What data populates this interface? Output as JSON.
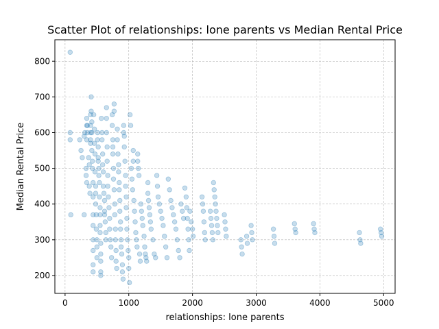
{
  "chart_data": {
    "type": "scatter",
    "title": "Scatter Plot of relationships: lone parents vs Median Rental Price",
    "xlabel": "relationships: lone parents",
    "ylabel": "Median Rental Price",
    "xlim": [
      -160,
      5180
    ],
    "ylim": [
      150,
      860
    ],
    "x_ticks": [
      0,
      1000,
      2000,
      3000,
      4000,
      5000
    ],
    "y_ticks": [
      200,
      300,
      400,
      500,
      600,
      700,
      800
    ],
    "grid": true,
    "marker_color": "#1f77b4",
    "marker_alpha": 0.25,
    "points": [
      [
        80,
        825
      ],
      [
        80,
        600
      ],
      [
        80,
        580
      ],
      [
        90,
        370
      ],
      [
        230,
        580
      ],
      [
        250,
        550
      ],
      [
        270,
        530
      ],
      [
        300,
        590
      ],
      [
        310,
        600
      ],
      [
        300,
        370
      ],
      [
        340,
        640
      ],
      [
        340,
        620
      ],
      [
        340,
        580
      ],
      [
        330,
        500
      ],
      [
        330,
        480
      ],
      [
        340,
        460
      ],
      [
        350,
        620
      ],
      [
        350,
        600
      ],
      [
        370,
        530
      ],
      [
        380,
        510
      ],
      [
        380,
        450
      ],
      [
        390,
        430
      ],
      [
        400,
        650
      ],
      [
        400,
        620
      ],
      [
        400,
        600
      ],
      [
        400,
        580
      ],
      [
        400,
        570
      ],
      [
        410,
        700
      ],
      [
        410,
        660
      ],
      [
        420,
        630
      ],
      [
        420,
        600
      ],
      [
        420,
        550
      ],
      [
        430,
        520
      ],
      [
        430,
        500
      ],
      [
        440,
        460
      ],
      [
        440,
        420
      ],
      [
        440,
        370
      ],
      [
        440,
        340
      ],
      [
        440,
        300
      ],
      [
        440,
        270
      ],
      [
        440,
        230
      ],
      [
        440,
        210
      ],
      [
        450,
        650
      ],
      [
        460,
        610
      ],
      [
        460,
        570
      ],
      [
        470,
        540
      ],
      [
        470,
        490
      ],
      [
        480,
        450
      ],
      [
        480,
        430
      ],
      [
        480,
        400
      ],
      [
        490,
        370
      ],
      [
        490,
        330
      ],
      [
        500,
        300
      ],
      [
        500,
        280
      ],
      [
        500,
        250
      ],
      [
        510,
        600
      ],
      [
        510,
        580
      ],
      [
        520,
        560
      ],
      [
        520,
        530
      ],
      [
        520,
        520
      ],
      [
        530,
        500
      ],
      [
        530,
        480
      ],
      [
        540,
        460
      ],
      [
        540,
        420
      ],
      [
        550,
        390
      ],
      [
        550,
        370
      ],
      [
        550,
        340
      ],
      [
        550,
        320
      ],
      [
        560,
        290
      ],
      [
        560,
        260
      ],
      [
        560,
        240
      ],
      [
        560,
        210
      ],
      [
        560,
        200
      ],
      [
        570,
        640
      ],
      [
        580,
        600
      ],
      [
        580,
        580
      ],
      [
        590,
        540
      ],
      [
        590,
        510
      ],
      [
        600,
        490
      ],
      [
        600,
        450
      ],
      [
        610,
        430
      ],
      [
        620,
        410
      ],
      [
        620,
        380
      ],
      [
        620,
        370
      ],
      [
        630,
        350
      ],
      [
        640,
        320
      ],
      [
        640,
        300
      ],
      [
        650,
        670
      ],
      [
        650,
        640
      ],
      [
        650,
        600
      ],
      [
        660,
        560
      ],
      [
        660,
        520
      ],
      [
        670,
        480
      ],
      [
        670,
        450
      ],
      [
        680,
        420
      ],
      [
        690,
        390
      ],
      [
        700,
        360
      ],
      [
        700,
        330
      ],
      [
        710,
        300
      ],
      [
        720,
        280
      ],
      [
        730,
        250
      ],
      [
        740,
        650
      ],
      [
        740,
        620
      ],
      [
        750,
        580
      ],
      [
        750,
        560
      ],
      [
        750,
        540
      ],
      [
        760,
        500
      ],
      [
        760,
        470
      ],
      [
        770,
        680
      ],
      [
        770,
        660
      ],
      [
        770,
        440
      ],
      [
        780,
        400
      ],
      [
        780,
        370
      ],
      [
        790,
        330
      ],
      [
        790,
        300
      ],
      [
        800,
        270
      ],
      [
        800,
        240
      ],
      [
        810,
        220
      ],
      [
        820,
        610
      ],
      [
        820,
        580
      ],
      [
        830,
        540
      ],
      [
        840,
        510
      ],
      [
        840,
        490
      ],
      [
        850,
        460
      ],
      [
        850,
        440
      ],
      [
        860,
        410
      ],
      [
        860,
        380
      ],
      [
        870,
        350
      ],
      [
        870,
        330
      ],
      [
        880,
        300
      ],
      [
        880,
        280
      ],
      [
        890,
        260
      ],
      [
        900,
        230
      ],
      [
        900,
        210
      ],
      [
        910,
        190
      ],
      [
        920,
        620
      ],
      [
        920,
        600
      ],
      [
        930,
        590
      ],
      [
        930,
        560
      ],
      [
        940,
        520
      ],
      [
        950,
        480
      ],
      [
        950,
        450
      ],
      [
        960,
        420
      ],
      [
        960,
        390
      ],
      [
        970,
        360
      ],
      [
        970,
        330
      ],
      [
        980,
        300
      ],
      [
        990,
        270
      ],
      [
        1000,
        250
      ],
      [
        1000,
        220
      ],
      [
        1010,
        180
      ],
      [
        1020,
        650
      ],
      [
        1030,
        620
      ],
      [
        1040,
        500
      ],
      [
        1050,
        470
      ],
      [
        1060,
        440
      ],
      [
        1070,
        550
      ],
      [
        1070,
        520
      ],
      [
        1080,
        410
      ],
      [
        1090,
        380
      ],
      [
        1100,
        350
      ],
      [
        1110,
        320
      ],
      [
        1120,
        300
      ],
      [
        1130,
        280
      ],
      [
        1140,
        540
      ],
      [
        1140,
        520
      ],
      [
        1150,
        500
      ],
      [
        1160,
        480
      ],
      [
        1170,
        260
      ],
      [
        1180,
        240
      ],
      [
        1190,
        400
      ],
      [
        1200,
        380
      ],
      [
        1210,
        360
      ],
      [
        1220,
        340
      ],
      [
        1240,
        310
      ],
      [
        1250,
        280
      ],
      [
        1260,
        260
      ],
      [
        1270,
        250
      ],
      [
        1280,
        240
      ],
      [
        1300,
        460
      ],
      [
        1300,
        430
      ],
      [
        1310,
        410
      ],
      [
        1320,
        390
      ],
      [
        1330,
        370
      ],
      [
        1340,
        350
      ],
      [
        1350,
        330
      ],
      [
        1380,
        300
      ],
      [
        1400,
        260
      ],
      [
        1420,
        250
      ],
      [
        1440,
        480
      ],
      [
        1450,
        450
      ],
      [
        1460,
        420
      ],
      [
        1480,
        400
      ],
      [
        1500,
        380
      ],
      [
        1520,
        360
      ],
      [
        1540,
        340
      ],
      [
        1560,
        310
      ],
      [
        1580,
        280
      ],
      [
        1600,
        250
      ],
      [
        1620,
        470
      ],
      [
        1640,
        440
      ],
      [
        1660,
        410
      ],
      [
        1680,
        390
      ],
      [
        1700,
        370
      ],
      [
        1720,
        350
      ],
      [
        1740,
        330
      ],
      [
        1760,
        300
      ],
      [
        1780,
        270
      ],
      [
        1800,
        250
      ],
      [
        1820,
        400
      ],
      [
        1840,
        380
      ],
      [
        1860,
        360
      ],
      [
        1880,
        445
      ],
      [
        1900,
        420
      ],
      [
        1910,
        390
      ],
      [
        1920,
        360
      ],
      [
        1930,
        330
      ],
      [
        1940,
        300
      ],
      [
        1950,
        270
      ],
      [
        1960,
        380
      ],
      [
        1980,
        350
      ],
      [
        2000,
        330
      ],
      [
        2010,
        310
      ],
      [
        2150,
        420
      ],
      [
        2160,
        400
      ],
      [
        2170,
        380
      ],
      [
        2180,
        350
      ],
      [
        2190,
        320
      ],
      [
        2200,
        300
      ],
      [
        2280,
        380
      ],
      [
        2290,
        360
      ],
      [
        2300,
        340
      ],
      [
        2310,
        320
      ],
      [
        2320,
        300
      ],
      [
        2330,
        460
      ],
      [
        2340,
        440
      ],
      [
        2350,
        420
      ],
      [
        2360,
        400
      ],
      [
        2370,
        380
      ],
      [
        2380,
        360
      ],
      [
        2390,
        340
      ],
      [
        2400,
        320
      ],
      [
        2500,
        370
      ],
      [
        2510,
        350
      ],
      [
        2520,
        330
      ],
      [
        2530,
        310
      ],
      [
        2760,
        300
      ],
      [
        2770,
        280
      ],
      [
        2780,
        260
      ],
      [
        2850,
        310
      ],
      [
        2860,
        290
      ],
      [
        2920,
        340
      ],
      [
        2930,
        320
      ],
      [
        2940,
        300
      ],
      [
        3270,
        330
      ],
      [
        3280,
        310
      ],
      [
        3290,
        290
      ],
      [
        3600,
        345
      ],
      [
        3610,
        330
      ],
      [
        3620,
        320
      ],
      [
        3900,
        345
      ],
      [
        3910,
        330
      ],
      [
        3920,
        320
      ],
      [
        4620,
        320
      ],
      [
        4630,
        300
      ],
      [
        4640,
        290
      ],
      [
        4950,
        330
      ],
      [
        4960,
        320
      ],
      [
        4970,
        310
      ]
    ]
  }
}
